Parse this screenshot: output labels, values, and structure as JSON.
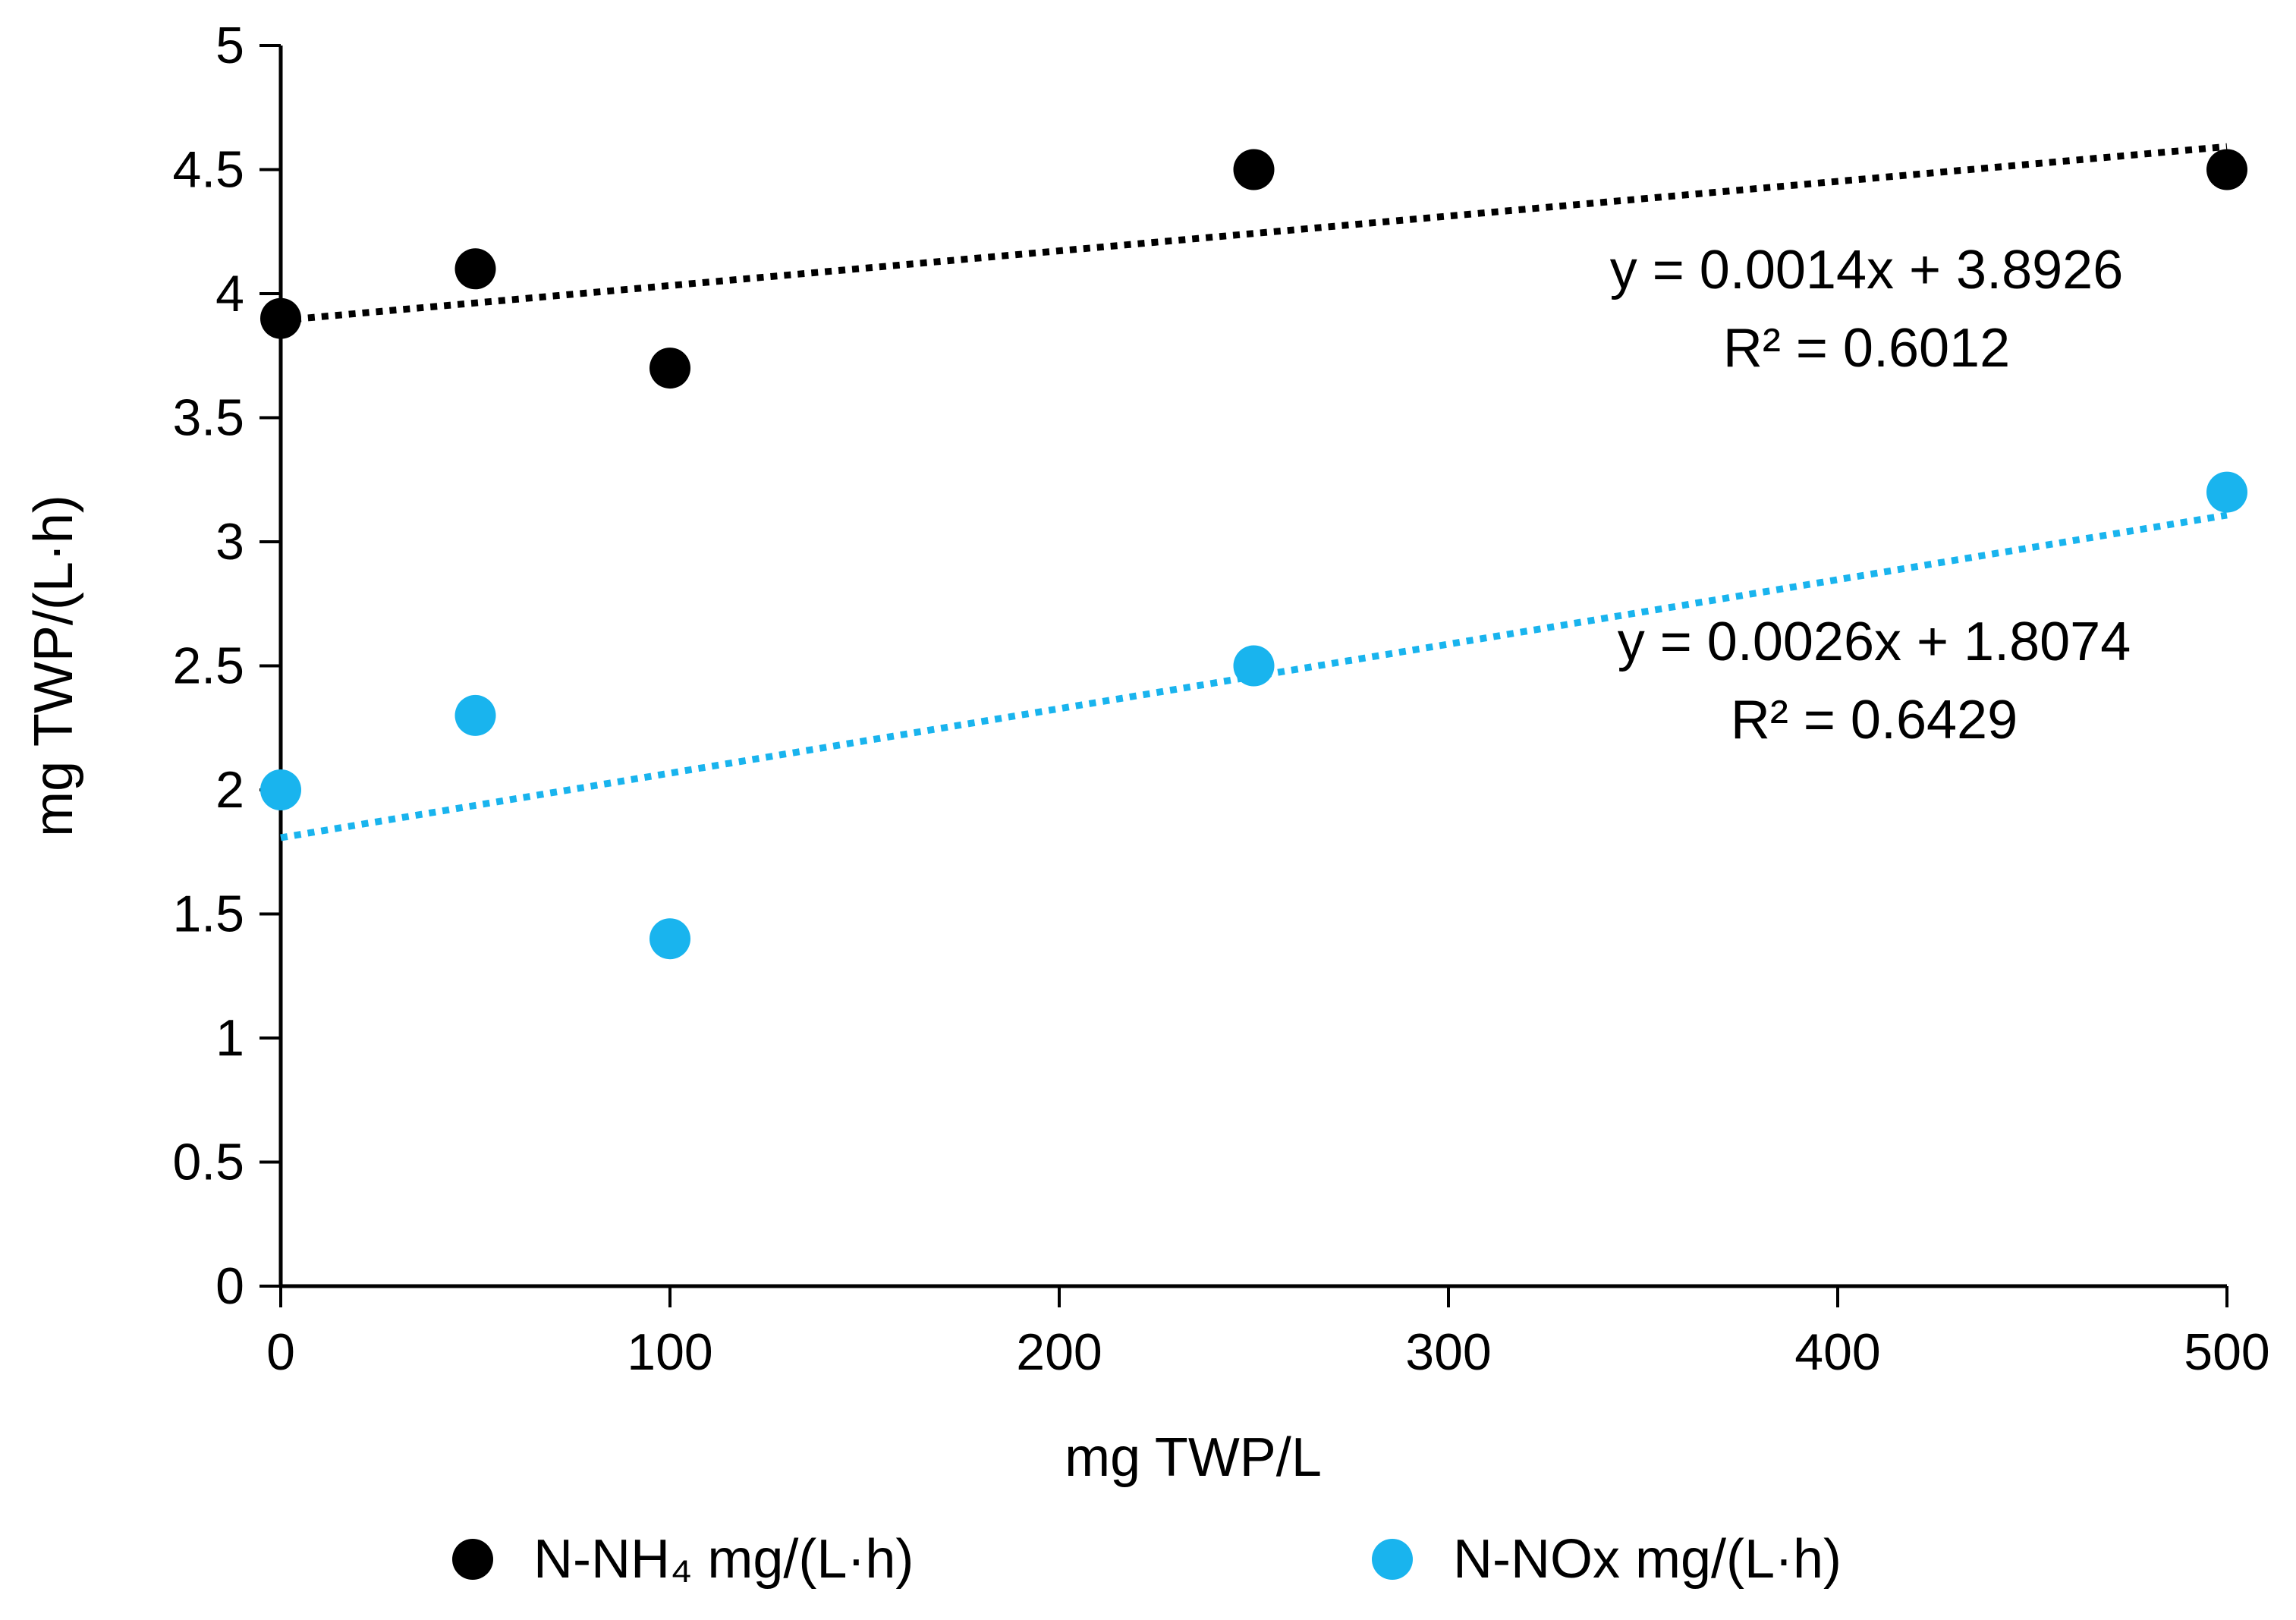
{
  "chart_data": {
    "type": "scatter",
    "xlabel": "mg TWP/L",
    "ylabel": "mg TWP/(L·h)",
    "xlim": [
      0,
      500
    ],
    "ylim": [
      0,
      5
    ],
    "x_ticks": [
      "0",
      "100",
      "200",
      "300",
      "400",
      "500"
    ],
    "y_ticks": [
      "0",
      "0.5",
      "1",
      "1.5",
      "2",
      "2.5",
      "3",
      "3.5",
      "4",
      "4.5",
      "5"
    ],
    "x_tick_values": [
      0,
      100,
      200,
      300,
      400,
      500
    ],
    "y_tick_values": [
      0,
      0.5,
      1,
      1.5,
      2,
      2.5,
      3,
      3.5,
      4,
      4.5,
      5
    ],
    "grid": false,
    "legend_position": "bottom",
    "series": [
      {
        "name": "N-NH₄ mg/(L·h)",
        "color": "#000000",
        "x": [
          0,
          50,
          100,
          250,
          500
        ],
        "y": [
          3.9,
          4.1,
          3.7,
          4.5,
          4.5
        ],
        "trendline": {
          "slope": 0.0014,
          "intercept": 3.8926,
          "style": "dotted",
          "equation": "y = 0.0014x + 3.8926",
          "r2": "R² = 0.6012"
        }
      },
      {
        "name": "N-NOx mg/(L·h)",
        "color": "#19b4ee",
        "x": [
          0,
          50,
          100,
          250,
          500
        ],
        "y": [
          2.0,
          2.3,
          1.4,
          2.5,
          3.2
        ],
        "trendline": {
          "slope": 0.0026,
          "intercept": 1.8074,
          "style": "dotted",
          "equation": "y = 0.0026x + 1.8074",
          "r2": "R² = 0.6429"
        }
      }
    ]
  }
}
